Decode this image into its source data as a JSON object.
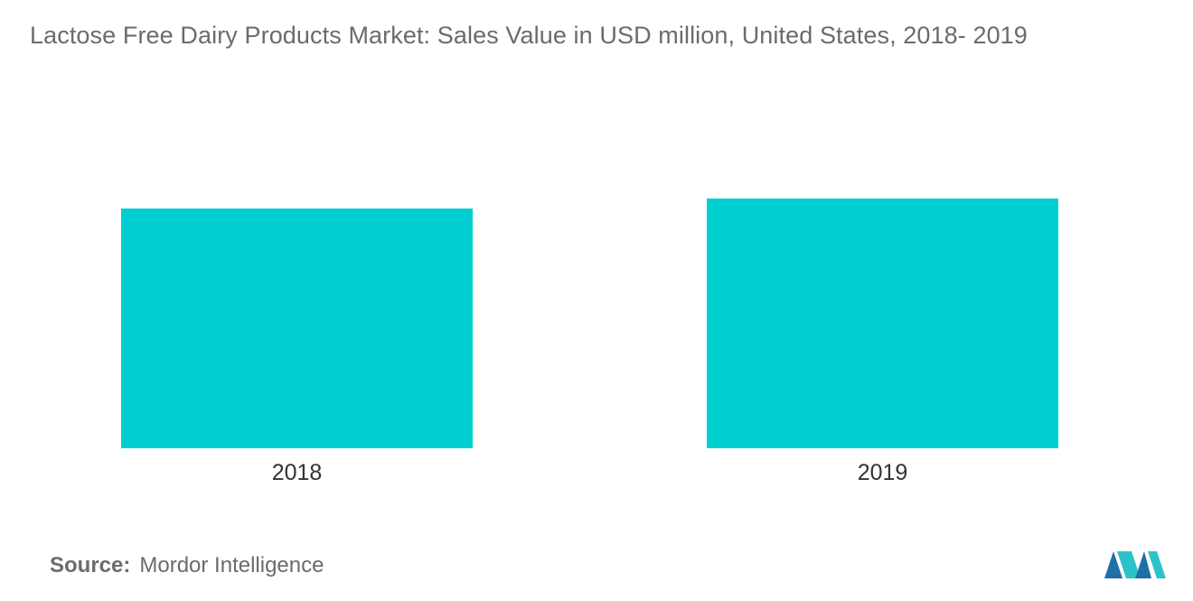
{
  "chart_data": {
    "type": "bar",
    "title": "Lactose Free Dairy Products Market: Sales Value in USD million, United States, 2018- 2019",
    "categories": [
      "2018",
      "2019"
    ],
    "values": [
      96,
      100
    ],
    "ylim": [
      0,
      110
    ],
    "xlabel": "",
    "ylabel": "",
    "grid": false,
    "legend": "none",
    "bar_color": "#00ced1"
  },
  "source": {
    "label": "Source:",
    "value": "Mordor Intelligence"
  },
  "logo": {
    "icon": "mordor-intelligence-logo-icon",
    "colors": [
      "#1f6fa8",
      "#2bc3c9"
    ]
  }
}
